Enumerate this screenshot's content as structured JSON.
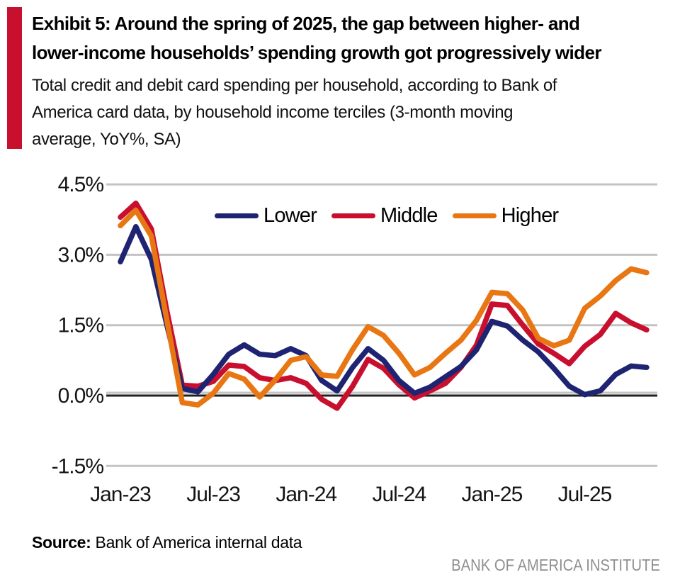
{
  "header": {
    "title_line1": "Exhibit 5: Around the spring of 2025, the gap between higher- and",
    "title_line2": "lower-income households’ spending growth got progressively wider",
    "subtitle_line1": "Total credit and debit card spending per household, according to Bank of",
    "subtitle_line2": "America card data, by household income terciles (3-month moving",
    "subtitle_line3": "average, YoY%, SA)",
    "accent_color": "#c8102e"
  },
  "chart_data": {
    "type": "line",
    "x": [
      "Jan-23",
      "Feb-23",
      "Mar-23",
      "Apr-23",
      "May-23",
      "Jun-23",
      "Jul-23",
      "Aug-23",
      "Sep-23",
      "Oct-23",
      "Nov-23",
      "Dec-23",
      "Jan-24",
      "Feb-24",
      "Mar-24",
      "Apr-24",
      "May-24",
      "Jun-24",
      "Jul-24",
      "Aug-24",
      "Sep-24",
      "Oct-24",
      "Nov-24",
      "Dec-24",
      "Jan-25",
      "Feb-25",
      "Mar-25",
      "Apr-25",
      "May-25",
      "Jun-25",
      "Jul-25",
      "Aug-25",
      "Sep-25",
      "Oct-25",
      "Nov-25"
    ],
    "series": [
      {
        "name": "Lower",
        "color": "#1e2472",
        "values": [
          2.85,
          3.6,
          2.9,
          1.5,
          0.15,
          0.08,
          0.45,
          0.88,
          1.08,
          0.88,
          0.85,
          1.0,
          0.85,
          0.32,
          0.1,
          0.6,
          1.0,
          0.75,
          0.32,
          0.05,
          0.18,
          0.4,
          0.62,
          0.97,
          1.58,
          1.48,
          1.18,
          0.93,
          0.58,
          0.2,
          0.02,
          0.1,
          0.45,
          0.63,
          0.6
        ]
      },
      {
        "name": "Middle",
        "color": "#c8102e",
        "values": [
          3.8,
          4.1,
          3.55,
          1.8,
          0.22,
          0.2,
          0.3,
          0.65,
          0.62,
          0.38,
          0.32,
          0.38,
          0.26,
          -0.08,
          -0.27,
          0.2,
          0.77,
          0.58,
          0.23,
          -0.05,
          0.1,
          0.26,
          0.6,
          1.07,
          1.95,
          1.92,
          1.5,
          1.1,
          0.9,
          0.68,
          1.05,
          1.3,
          1.75,
          1.55,
          1.4
        ]
      },
      {
        "name": "Higher",
        "color": "#e87613",
        "values": [
          3.62,
          3.95,
          3.4,
          1.6,
          -0.15,
          -0.2,
          0.05,
          0.47,
          0.35,
          -0.03,
          0.33,
          0.75,
          0.83,
          0.44,
          0.41,
          0.98,
          1.47,
          1.28,
          0.9,
          0.44,
          0.6,
          0.9,
          1.18,
          1.6,
          2.2,
          2.17,
          1.82,
          1.22,
          1.06,
          1.18,
          1.86,
          2.12,
          2.45,
          2.7,
          2.62
        ]
      }
    ],
    "draw_order": [
      1,
      0,
      2
    ],
    "ylim": [
      -1.5,
      4.5
    ],
    "yticks": [
      {
        "value": 4.5,
        "label": "4.5%"
      },
      {
        "value": 3.0,
        "label": "3.0%"
      },
      {
        "value": 1.5,
        "label": "1.5%"
      },
      {
        "value": 0.0,
        "label": "0.0%"
      },
      {
        "value": -1.5,
        "label": "-1.5%"
      }
    ],
    "xticks": [
      {
        "index": 0,
        "label": "Jan-23"
      },
      {
        "index": 6,
        "label": "Jul-23"
      },
      {
        "index": 12,
        "label": "Jan-24"
      },
      {
        "index": 18,
        "label": "Jul-24"
      },
      {
        "index": 24,
        "label": "Jan-25"
      },
      {
        "index": 30,
        "label": "Jul-25"
      }
    ],
    "grid": "horizontal",
    "gridline_color": "#c3c3c3",
    "zero_axis_color": "#1f1f1f",
    "legend_position": "top-center"
  },
  "footer": {
    "source_label": "Source:",
    "source_text": "Bank of America internal data",
    "institute": "BANK OF AMERICA INSTITUTE"
  }
}
